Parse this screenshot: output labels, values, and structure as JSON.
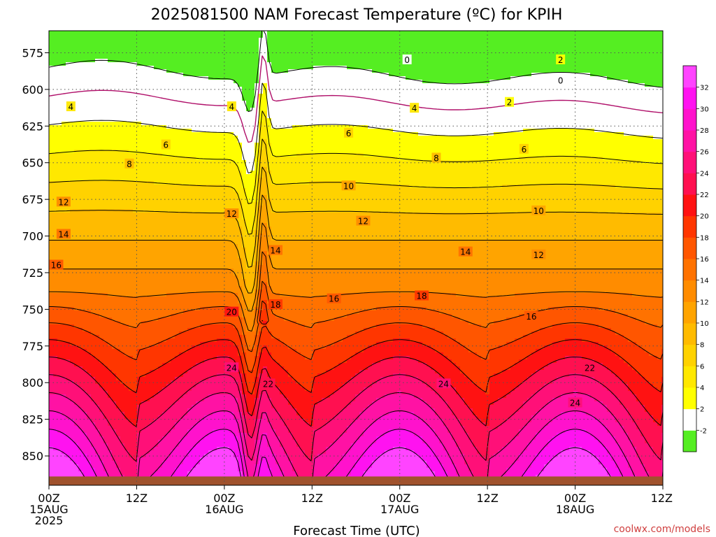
{
  "chart_data": {
    "type": "heatmap",
    "title": "2025081500 NAM Forecast Temperature (ºC) for KPIH",
    "xlabel": "Forecast Time (UTC)",
    "credit": "coolwx.com/models",
    "x_ticks": [
      {
        "hour": 0,
        "lines": [
          "00Z",
          "15AUG",
          "2025"
        ]
      },
      {
        "hour": 12,
        "lines": [
          "12Z"
        ]
      },
      {
        "hour": 24,
        "lines": [
          "00Z",
          "16AUG"
        ]
      },
      {
        "hour": 36,
        "lines": [
          "12Z"
        ]
      },
      {
        "hour": 48,
        "lines": [
          "00Z",
          "17AUG"
        ]
      },
      {
        "hour": 60,
        "lines": [
          "12Z"
        ]
      },
      {
        "hour": 72,
        "lines": [
          "00Z",
          "18AUG"
        ]
      },
      {
        "hour": 84,
        "lines": [
          "12Z"
        ]
      }
    ],
    "xlim": [
      0,
      84
    ],
    "y_ticks": [
      "575",
      "600",
      "625",
      "650",
      "675",
      "700",
      "725",
      "750",
      "775",
      "800",
      "825",
      "850"
    ],
    "ylim": [
      560,
      870
    ],
    "y_axis": "pressure (hPa), inverted",
    "grid": true,
    "colorbar": {
      "labels": [
        "-2",
        "2",
        "4",
        "6",
        "8",
        "10",
        "12",
        "14",
        "16",
        "18",
        "20",
        "22",
        "24",
        "26",
        "28",
        "30",
        "32"
      ],
      "boundaries": [
        -4,
        -2,
        2,
        4,
        6,
        8,
        10,
        12,
        14,
        16,
        18,
        20,
        22,
        24,
        26,
        28,
        30,
        32,
        34
      ],
      "colors": [
        "#55ee22",
        "#ffffff",
        "#ffff00",
        "#ffe800",
        "#ffd200",
        "#ffbb00",
        "#ffa400",
        "#ff8c00",
        "#ff7200",
        "#ff5600",
        "#ff3600",
        "#ff1212",
        "#ff1050",
        "#ff1078",
        "#ff12a4",
        "#ff12cc",
        "#ff12f0",
        "#ff44ff"
      ]
    },
    "surface_color": "#a0522d",
    "contour_labels": [
      {
        "text": "0",
        "hour": 49,
        "p": 580
      },
      {
        "text": "2",
        "hour": 70,
        "p": 580
      },
      {
        "text": "0",
        "hour": 70,
        "p": 594
      },
      {
        "text": "2",
        "hour": 63,
        "p": 609
      },
      {
        "text": "4",
        "hour": 3,
        "p": 612
      },
      {
        "text": "4",
        "hour": 25,
        "p": 612
      },
      {
        "text": "4",
        "hour": 50,
        "p": 613
      },
      {
        "text": "6",
        "hour": 16,
        "p": 638
      },
      {
        "text": "6",
        "hour": 41,
        "p": 630
      },
      {
        "text": "6",
        "hour": 65,
        "p": 641
      },
      {
        "text": "8",
        "hour": 11,
        "p": 651
      },
      {
        "text": "8",
        "hour": 53,
        "p": 647
      },
      {
        "text": "10",
        "hour": 41,
        "p": 666
      },
      {
        "text": "10",
        "hour": 67,
        "p": 683
      },
      {
        "text": "12",
        "hour": 2,
        "p": 677
      },
      {
        "text": "12",
        "hour": 25,
        "p": 685
      },
      {
        "text": "12",
        "hour": 43,
        "p": 690
      },
      {
        "text": "12",
        "hour": 67,
        "p": 713
      },
      {
        "text": "14",
        "hour": 2,
        "p": 699
      },
      {
        "text": "14",
        "hour": 31,
        "p": 710
      },
      {
        "text": "14",
        "hour": 57,
        "p": 711
      },
      {
        "text": "16",
        "hour": 1,
        "p": 720
      },
      {
        "text": "16",
        "hour": 39,
        "p": 743
      },
      {
        "text": "16",
        "hour": 66,
        "p": 755
      },
      {
        "text": "18",
        "hour": 31,
        "p": 747
      },
      {
        "text": "18",
        "hour": 51,
        "p": 741
      },
      {
        "text": "20",
        "hour": 25,
        "p": 752
      },
      {
        "text": "24",
        "hour": 25,
        "p": 790
      },
      {
        "text": "22",
        "hour": 30,
        "p": 801
      },
      {
        "text": "24",
        "hour": 54,
        "p": 801
      },
      {
        "text": "22",
        "hour": 74,
        "p": 790
      },
      {
        "text": "24",
        "hour": 72,
        "p": 814
      }
    ]
  }
}
